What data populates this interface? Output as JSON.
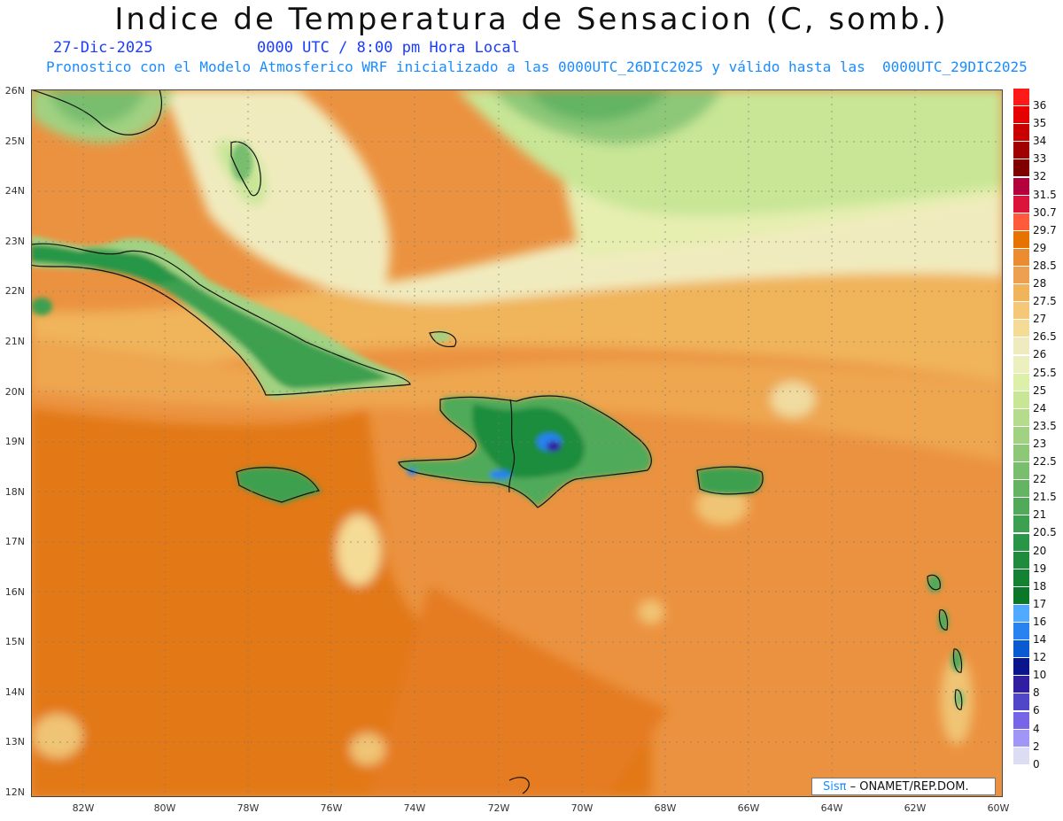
{
  "title": "Indice de Temperatura de Sensacion (C, somb.)",
  "date": "27-Dic-2025",
  "time": "0000 UTC / 8:00 pm Hora Local",
  "forecast_line": "Pronostico con el Modelo Atmosferico WRF inicializado a las 0000UTC_26DIC2025 y válido hasta las  0000UTC_29DIC2025",
  "credit": {
    "brand": "Sisπ",
    "text": " – ONAMET/REP.DOM."
  },
  "lat_labels": [
    "26N",
    "25N",
    "24N",
    "23N",
    "22N",
    "21N",
    "20N",
    "19N",
    "18N",
    "17N",
    "16N",
    "15N",
    "14N",
    "13N",
    "12N"
  ],
  "lon_labels": [
    "82W",
    "80W",
    "78W",
    "76W",
    "74W",
    "72W",
    "70W",
    "68W",
    "66W",
    "64W",
    "62W",
    "60W"
  ],
  "scale": [
    {
      "label": "36",
      "color": "#ff1a1a"
    },
    {
      "label": "35",
      "color": "#e60000"
    },
    {
      "label": "34",
      "color": "#c80000"
    },
    {
      "label": "33",
      "color": "#a00000"
    },
    {
      "label": "32",
      "color": "#800000"
    },
    {
      "label": "31.5",
      "color": "#b4003c"
    },
    {
      "label": "30.7",
      "color": "#dc143c"
    },
    {
      "label": "29.7",
      "color": "#ff5a3c"
    },
    {
      "label": "29",
      "color": "#e67300"
    },
    {
      "label": "28.5",
      "color": "#eb8c32"
    },
    {
      "label": "28",
      "color": "#eda050"
    },
    {
      "label": "27.5",
      "color": "#f0b45a"
    },
    {
      "label": "27",
      "color": "#f5c878"
    },
    {
      "label": "26.5",
      "color": "#f5dc96"
    },
    {
      "label": "26",
      "color": "#f0ebbe"
    },
    {
      "label": "25.5",
      "color": "#ebf0be"
    },
    {
      "label": "25",
      "color": "#dcf0aa"
    },
    {
      "label": "24",
      "color": "#c8e696"
    },
    {
      "label": "23.5",
      "color": "#b4dc8c"
    },
    {
      "label": "23",
      "color": "#a0d282"
    },
    {
      "label": "22.5",
      "color": "#8cc878"
    },
    {
      "label": "22",
      "color": "#78be6e"
    },
    {
      "label": "21.5",
      "color": "#64b464"
    },
    {
      "label": "21",
      "color": "#50aa5a"
    },
    {
      "label": "20.5",
      "color": "#3ca050"
    },
    {
      "label": "20",
      "color": "#289646"
    },
    {
      "label": "19",
      "color": "#1e8c3c"
    },
    {
      "label": "18",
      "color": "#148232"
    },
    {
      "label": "17",
      "color": "#0a7828"
    },
    {
      "label": "16",
      "color": "#50aaff"
    },
    {
      "label": "14",
      "color": "#2882f0"
    },
    {
      "label": "12",
      "color": "#0a5ad2"
    },
    {
      "label": "10",
      "color": "#0a148c"
    },
    {
      "label": "8",
      "color": "#321ea0"
    },
    {
      "label": "6",
      "color": "#5046c8"
    },
    {
      "label": "4",
      "color": "#7864e6"
    },
    {
      "label": "2",
      "color": "#a096f5"
    },
    {
      "label": "0",
      "color": "#dcdcf5"
    }
  ]
}
